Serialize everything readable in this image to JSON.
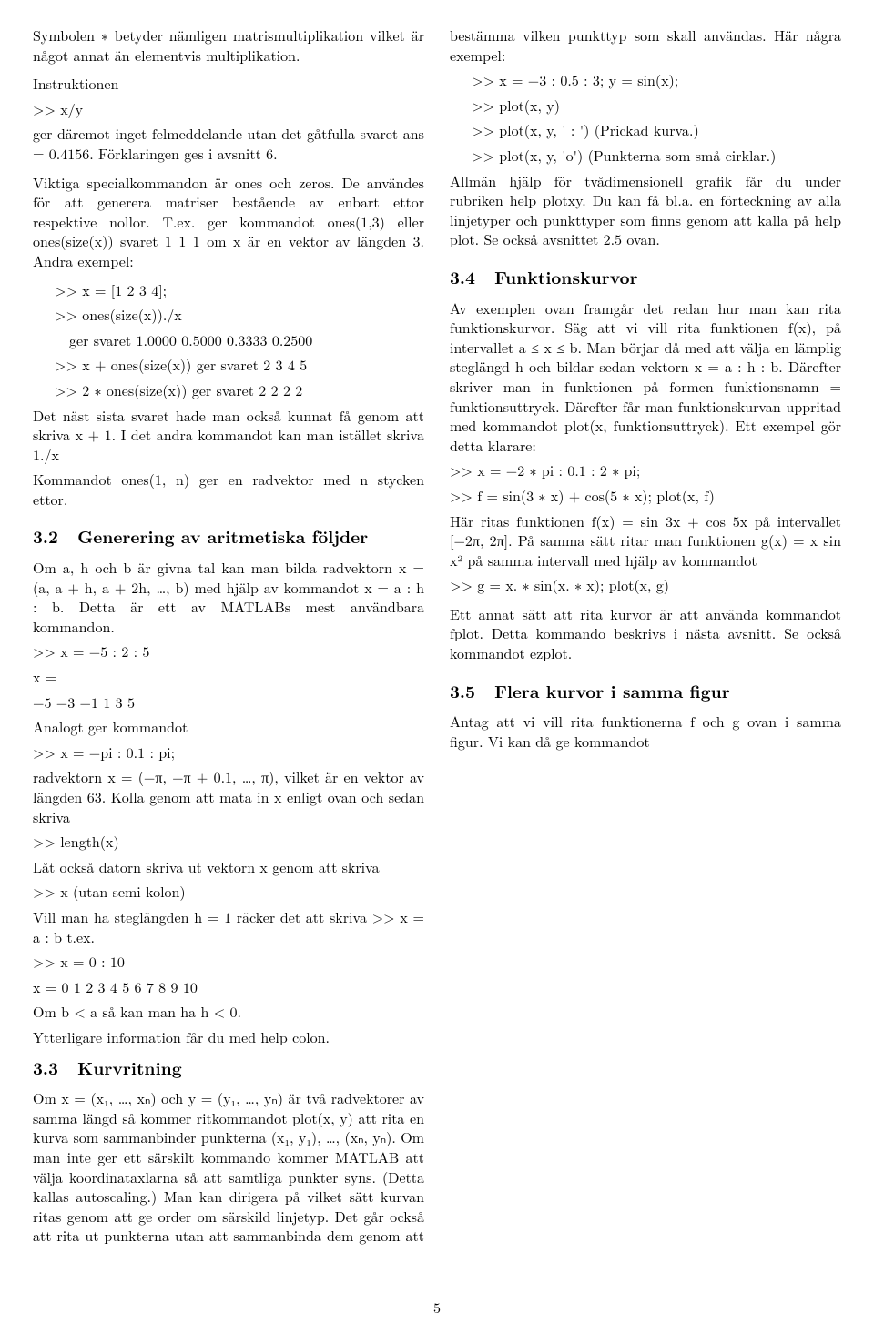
{
  "left": {
    "p1": "Symbolen ∗ betyder nämligen matris­multiplikation vilket är något annat än elementvis multiplikation.",
    "p1b": "Instruktionen",
    "p1c": ">> x/y",
    "p1d": "ger däremot inget felmeddelande utan det gåtfulla svaret ans = 0.4156. Förklaringen ges i avsnitt 6.",
    "p2": "Viktiga specialkommandon är ones och zeros. De användes för att generera matriser bestående av enbart ettor respektive nollor. T.ex. ger kommandot ones(1,3) eller ones(size(x)) svaret 1 1 1 om x är en vektor av längden 3. Andra exempel:",
    "p2a": ">> x = [1 2 3 4];",
    "p2b": ">> ones(size(x))./x",
    "p2c": "ger svaret 1.0000  0.5000  0.3333  0.2500",
    "p2d": ">> x + ones(size(x))  ger svaret  2 3 4 5",
    "p2e": ">> 2 ∗ ones(size(x))  ger svaret  2 2 2 2",
    "p2f": "Det näst sista svaret hade man också kunnat få genom att skriva x + 1. I det andra kommandot kan man istället skriva 1./x",
    "p2g": "Kommandot ones(1, n) ger en radvektor med n stycken ettor.",
    "sec32_num": "3.2",
    "sec32_title": "Generering av aritmetiska följder",
    "p3": "Om a, h och b är givna tal kan man bilda radvektorn x = (a, a + h, a + 2h, …, b) med hjälp av kommandot x = a : h : b. Detta är ett av MAT­LABs mest användbara kommandon.",
    "p3a": ">> x = −5 : 2 : 5",
    "p3b": "x =",
    "p3c": "−5  −3  −1   1   3   5",
    "p3d": "Analogt ger kommandot",
    "p3e": ">> x = −pi : 0.1 : pi;",
    "p3f": "radvektorn x = (−π, −π + 0.1, …, π), vilket är en vektor av längden 63. Kolla genom att mata in x enligt ovan och sedan skriva",
    "p3g": ">> length(x)",
    "p3h": "Låt också datorn skriva ut vektorn x genom att skriva",
    "p3i": ">> x   (utan semi-kolon)",
    "p3j": "Vill man ha steglängden h = 1 räcker det att skriva  >> x = a : b  t.ex.",
    "p3k": ">> x = 0 : 10",
    "p3l": "x = 0 1 2 3 4 5 6 7 8 9 10",
    "p3m": "Om b < a så kan man ha h < 0.",
    "p3n": "Ytterligare information får du med help colon."
  },
  "right": {
    "sec33_num": "3.3",
    "sec33_title": "Kurvritning",
    "p4": "Om x = (x₁, …, xₙ) och y = (y₁, …, yₙ) är två radvektorer av samma längd så kommer ritkom­mandot plot(x, y) att rita en kurva som sam­manbinder punkterna (x₁, y₁), …, (xₙ, yₙ). Om man inte ger ett särskilt kommando kommer MATLAB att välja koordinataxlarna så att samtliga punkter syns. (Detta kallas auto­scaling.) Man kan dirigera på vilket sätt kur­van ritas genom att ge order om särskild linje­typ. Det går också att rita ut punkterna utan att sammanbinda dem genom att bestämma vilken punkttyp som skall användas. Här några exempel:",
    "p4a": ">> x = −3 : 0.5 : 3; y = sin(x);",
    "p4b": ">> plot(x, y)",
    "p4c": ">> plot(x, y, ' : ')   (Prickad kurva.)",
    "p4d": ">> plot(x, y, 'o')   (Punkterna som små cirklar.)",
    "p4e": "Allmän hjälp för tvådimensionell grafik får du un­der rubriken help plotxy. Du kan få bl.a. en förteckning av alla linjetyper och punkttyper som finns genom att kalla på help plot. Se också avs­nittet 2.5 ovan.",
    "sec34_num": "3.4",
    "sec34_title": "Funktionskurvor",
    "p5": "Av exemplen ovan framgår det redan hur man kan rita funktionskurvor. Säg att vi vill rita funk­tionen f(x), på intervallet a ≤ x ≤ b. Man börjar då med att välja en lämplig steglängd h och bildar sedan vektorn x = a : h : b. Därefter skriver man in funktionen på formen funktionsnamn = funktionsuttryck. Därefter får man funktionskurvan uppritad med kommandot plot(x, funktionsuttryck). Ett exempel gör detta klarare:",
    "p5a": ">> x = −2 ∗ pi : 0.1 : 2 ∗ pi;",
    "p5b": ">> f = sin(3 ∗ x) + cos(5 ∗ x); plot(x, f)",
    "p5c": "Här ritas funktionen f(x) = sin 3x + cos 5x på intervallet [−2π, 2π]. På samma sätt ritar man funktionen g(x) = x sin x² på samma intervall med hjälp av kommandot",
    "p5d": ">> g = x. ∗ sin(x. ∗ x); plot(x, g)",
    "p6": "Ett annat sätt att rita kurvor är att använda kommandot fplot. Detta kommando beskrivs i nästa avsnitt. Se också kommandot ezplot.",
    "sec35_num": "3.5",
    "sec35_title": "Flera kurvor i samma figur",
    "p7": "Antag att vi vill rita funktionerna f och g ovan i samma figur. Vi kan då ge kommandot"
  },
  "pagenum": "5"
}
